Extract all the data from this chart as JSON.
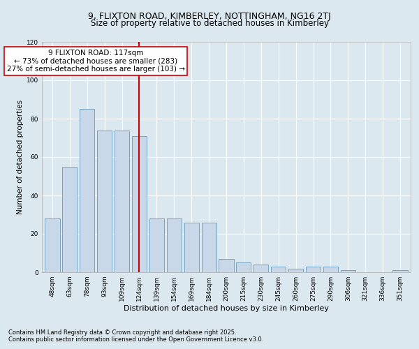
{
  "title1": "9, FLIXTON ROAD, KIMBERLEY, NOTTINGHAM, NG16 2TJ",
  "title2": "Size of property relative to detached houses in Kimberley",
  "xlabel": "Distribution of detached houses by size in Kimberley",
  "ylabel": "Number of detached properties",
  "categories": [
    "48sqm",
    "63sqm",
    "78sqm",
    "93sqm",
    "109sqm",
    "124sqm",
    "139sqm",
    "154sqm",
    "169sqm",
    "184sqm",
    "200sqm",
    "215sqm",
    "230sqm",
    "245sqm",
    "260sqm",
    "275sqm",
    "290sqm",
    "306sqm",
    "321sqm",
    "336sqm",
    "351sqm"
  ],
  "values": [
    28,
    55,
    85,
    74,
    74,
    71,
    28,
    28,
    26,
    26,
    7,
    5,
    4,
    3,
    2,
    3,
    3,
    1,
    0,
    0,
    1
  ],
  "bar_color": "#c8d8e8",
  "bar_edge_color": "#6699bb",
  "vline_x": 5,
  "vline_color": "#cc0000",
  "annotation_text": "9 FLIXTON ROAD: 117sqm\n← 73% of detached houses are smaller (283)\n27% of semi-detached houses are larger (103) →",
  "annotation_box_color": "#ffffff",
  "annotation_box_edge_color": "#cc0000",
  "footnote1": "Contains HM Land Registry data © Crown copyright and database right 2025.",
  "footnote2": "Contains public sector information licensed under the Open Government Licence v3.0.",
  "background_color": "#dce8f0",
  "plot_bg_color": "#dce8f0",
  "ylim": [
    0,
    120
  ],
  "yticks": [
    0,
    20,
    40,
    60,
    80,
    100,
    120
  ],
  "title1_fontsize": 9,
  "title2_fontsize": 8.5,
  "annotation_fontsize": 7.5,
  "ylabel_fontsize": 7.5,
  "xlabel_fontsize": 8,
  "tick_fontsize": 6.5,
  "footnote_fontsize": 6
}
